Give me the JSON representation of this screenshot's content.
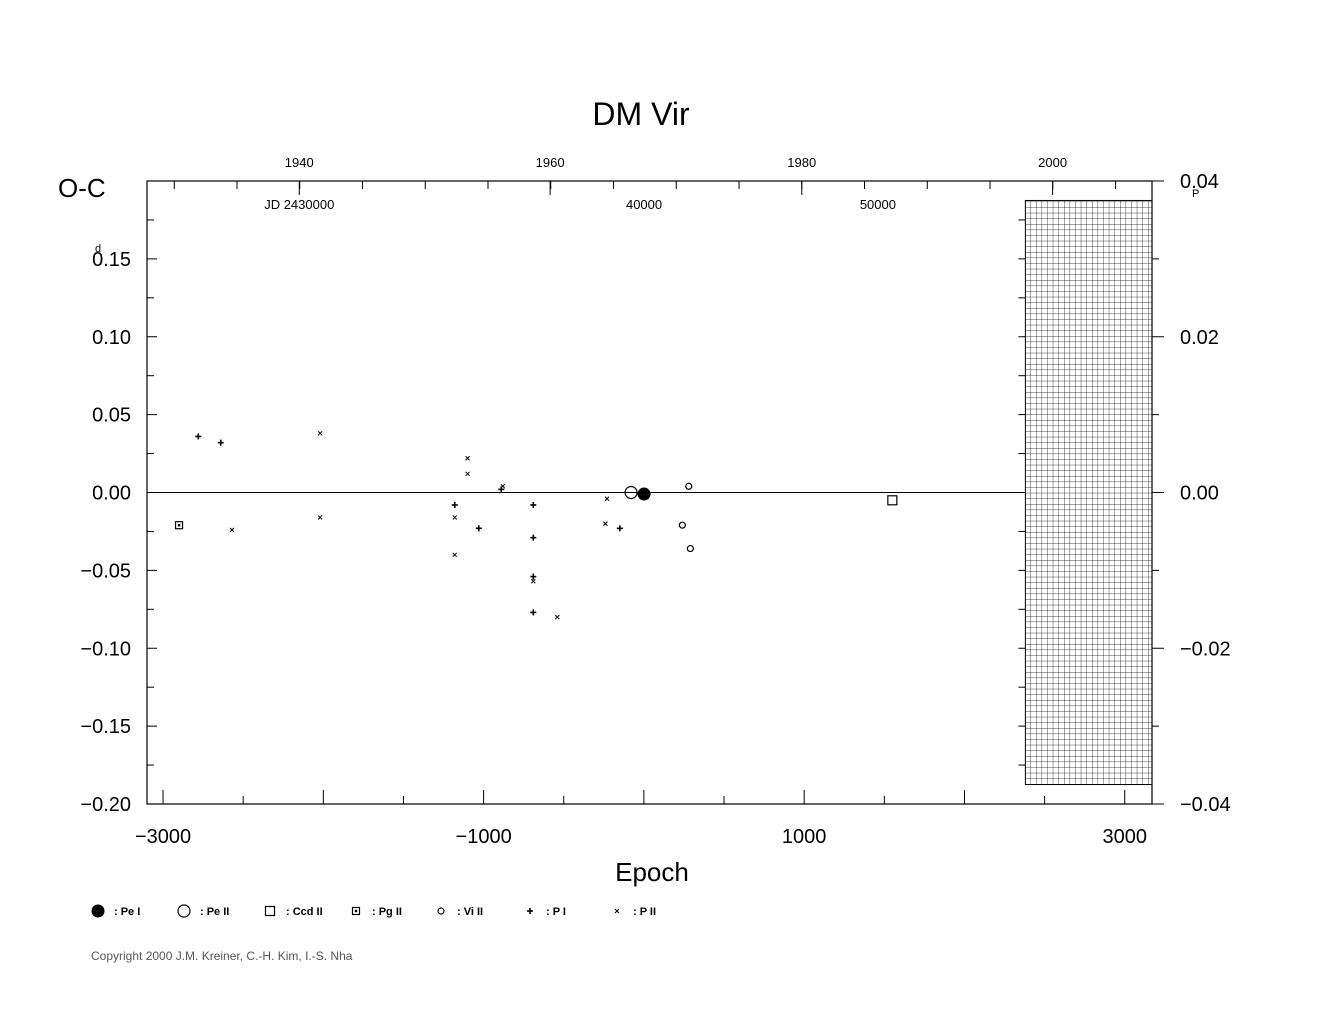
{
  "chart_data": {
    "type": "scatter",
    "title": "DM  Vir",
    "xlabel": "Epoch",
    "ylabel": "O-C",
    "y_unit_superscript": "d",
    "y2_unit_superscript": "P",
    "xlim": [
      -3100,
      3170
    ],
    "ylim": [
      -0.2,
      0.2
    ],
    "y2lim": [
      -0.04,
      0.04
    ],
    "x_ticks": [
      -3000,
      -1000,
      1000,
      3000
    ],
    "x_tick_labels": [
      "−3000",
      "−1000",
      "1000",
      "3000"
    ],
    "y_ticks": [
      0.15,
      0.1,
      0.05,
      0.0,
      -0.05,
      -0.1,
      -0.15,
      -0.2
    ],
    "y_tick_labels": [
      "0.15",
      "0.10",
      "0.05",
      "0.00",
      "−0.05",
      "−0.10",
      "−0.15",
      "−0.20"
    ],
    "y2_ticks": [
      0.04,
      0.02,
      0.0,
      -0.02,
      -0.04
    ],
    "y2_tick_labels": [
      "0.04",
      "0.02",
      "0.00",
      "−0.02",
      "−0.04"
    ],
    "year_ticks": [
      1940,
      1960,
      1980,
      2000
    ],
    "year_tick_positions_epoch": [
      -2150,
      -585,
      985,
      2550
    ],
    "jd_ticks": [
      "JD  2430000",
      "40000",
      "50000"
    ],
    "jd_tick_positions_epoch": [
      -2150,
      1,
      1460
    ],
    "future_region_start_epoch": 2380,
    "series": [
      {
        "name": "Pe I",
        "marker": "filled-circle",
        "points": [
          [
            1,
            -0.001
          ]
        ]
      },
      {
        "name": "Pe II",
        "marker": "open-circle",
        "points": [
          [
            -80,
            0.0
          ]
        ]
      },
      {
        "name": "Ccd II",
        "marker": "open-square",
        "points": [
          [
            1550,
            -0.005
          ]
        ]
      },
      {
        "name": "Pg II",
        "marker": "small-square",
        "points": [
          [
            -2900,
            -0.021
          ]
        ]
      },
      {
        "name": "Vi II",
        "marker": "small-circle",
        "points": [
          [
            280,
            0.004
          ],
          [
            240,
            -0.021
          ],
          [
            290,
            -0.036
          ]
        ]
      },
      {
        "name": "P I",
        "marker": "plus",
        "points": [
          [
            -2780,
            0.036
          ],
          [
            -2640,
            0.032
          ],
          [
            -1180,
            -0.008
          ],
          [
            -1030,
            -0.023
          ],
          [
            -890,
            0.002
          ],
          [
            -690,
            -0.008
          ],
          [
            -690,
            -0.029
          ],
          [
            -690,
            -0.054
          ],
          [
            -690,
            -0.077
          ],
          [
            -150,
            -0.023
          ]
        ]
      },
      {
        "name": "P II",
        "marker": "cross",
        "points": [
          [
            -2570,
            -0.024
          ],
          [
            -2020,
            0.038
          ],
          [
            -2020,
            -0.016
          ],
          [
            -1180,
            -0.016
          ],
          [
            -1180,
            -0.04
          ],
          [
            -1100,
            0.022
          ],
          [
            -1100,
            0.012
          ],
          [
            -880,
            0.004
          ],
          [
            -690,
            -0.057
          ],
          [
            -540,
            -0.08
          ],
          [
            -240,
            -0.02
          ],
          [
            -230,
            -0.004
          ]
        ]
      }
    ],
    "legend": [
      {
        "marker": "filled-circle",
        "label": ": Pe  I"
      },
      {
        "marker": "open-circle",
        "label": ": Pe  II"
      },
      {
        "marker": "open-square",
        "label": ": Ccd  II"
      },
      {
        "marker": "small-square",
        "label": ": Pg  II"
      },
      {
        "marker": "small-circle",
        "label": ": Vi  II"
      },
      {
        "marker": "plus",
        "label": ": P  I"
      },
      {
        "marker": "cross",
        "label": ": P  II"
      }
    ],
    "legend_position": "bottom"
  },
  "copyright": "Copyright 2000 J.M. Kreiner, C.-H. Kim, I.-S. Nha"
}
